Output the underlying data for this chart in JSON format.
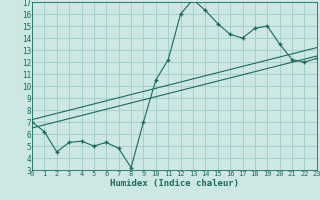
{
  "xlabel": "Humidex (Indice chaleur)",
  "bg_color": "#cde8e4",
  "grid_color": "#9fccc6",
  "line_color": "#1a6b5a",
  "xlim": [
    0,
    23
  ],
  "ylim": [
    3,
    17
  ],
  "xticks": [
    0,
    1,
    2,
    3,
    4,
    5,
    6,
    7,
    8,
    9,
    10,
    11,
    12,
    13,
    14,
    15,
    16,
    17,
    18,
    19,
    20,
    21,
    22,
    23
  ],
  "yticks": [
    3,
    4,
    5,
    6,
    7,
    8,
    9,
    10,
    11,
    12,
    13,
    14,
    15,
    16,
    17
  ],
  "line1_x": [
    0,
    1,
    2,
    3,
    4,
    5,
    6,
    7,
    8,
    9,
    10,
    11,
    12,
    13,
    14,
    15,
    16,
    17,
    18,
    19,
    20,
    21,
    22,
    23
  ],
  "line1_y": [
    7.0,
    6.2,
    4.5,
    5.3,
    5.4,
    5.0,
    5.3,
    4.8,
    3.2,
    7.0,
    10.5,
    12.2,
    16.0,
    17.2,
    16.3,
    15.2,
    14.3,
    14.0,
    14.8,
    15.0,
    13.5,
    12.2,
    12.0,
    12.3
  ],
  "line2_x": [
    0,
    23
  ],
  "line2_y": [
    6.5,
    12.5
  ],
  "line3_x": [
    0,
    23
  ],
  "line3_y": [
    7.2,
    13.2
  ],
  "marker": "+"
}
